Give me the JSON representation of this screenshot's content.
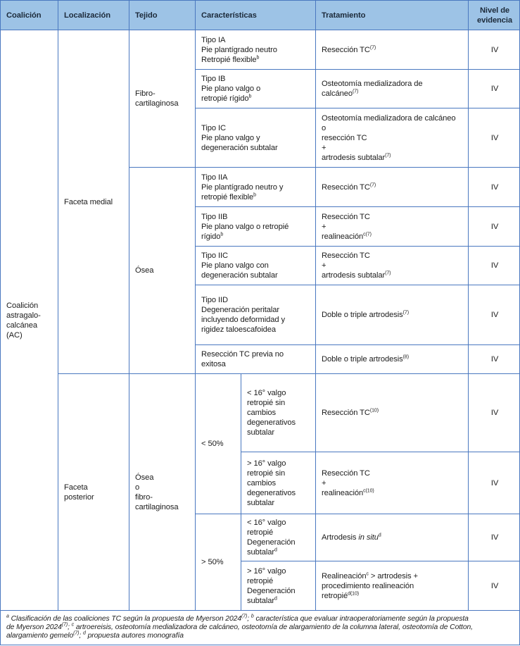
{
  "header": {
    "coalicion": [
      [
        "Coalición"
      ]
    ],
    "localizacion": [
      [
        "Localización"
      ]
    ],
    "tejido": [
      [
        "Tejido"
      ]
    ],
    "caracteristicas": [
      [
        "Características"
      ]
    ],
    "tratamiento": [
      [
        "Tratamiento"
      ]
    ],
    "nivel": [
      [
        "Nivel de"
      ],
      [
        "evidencia"
      ]
    ]
  },
  "coalicion": [
    [
      "Coalición"
    ],
    [
      "astragalo-"
    ],
    [
      "calcánea"
    ],
    [
      "(AC)"
    ]
  ],
  "localizacion": {
    "medial": [
      [
        "Faceta medial"
      ]
    ],
    "posterior": [
      [
        "Faceta"
      ],
      [
        "posterior"
      ]
    ]
  },
  "tejido": {
    "fibro": [
      [
        "Fibro-"
      ],
      [
        "cartilaginosa"
      ]
    ],
    "osea": [
      [
        "Ósea"
      ]
    ],
    "osea_fibro": [
      [
        "Ósea"
      ],
      [
        "o"
      ],
      [
        "fibro-"
      ],
      [
        "cartilaginosa"
      ]
    ]
  },
  "porcentaje": {
    "lt50": [
      [
        "< 50%"
      ]
    ],
    "gt50": [
      [
        "> 50%"
      ]
    ]
  },
  "rows": [
    {
      "car": [
        [
          "Tipo IA"
        ],
        [
          "Pie plantígrado neutro"
        ],
        [
          "Retropié flexible",
          {
            "s": "b"
          }
        ]
      ],
      "trat": [
        [
          "Resección TC",
          {
            "s": "(7)"
          }
        ]
      ],
      "niv": [
        [
          "IV"
        ]
      ]
    },
    {
      "car": [
        [
          "Tipo IB"
        ],
        [
          "Pie plano valgo o"
        ],
        [
          "retropié rígido",
          {
            "s": "b"
          }
        ]
      ],
      "trat": [
        [
          "Osteotomía medializadora de"
        ],
        [
          "calcáneo",
          {
            "s": "(7)"
          }
        ]
      ],
      "niv": [
        [
          "IV"
        ]
      ]
    },
    {
      "car": [
        [
          "Tipo IC"
        ],
        [
          "Pie plano valgo y"
        ],
        [
          "degeneración subtalar"
        ]
      ],
      "trat": [
        [
          "Osteotomía medializadora de calcáneo"
        ],
        [
          "o"
        ],
        [
          "resección TC"
        ],
        [
          "+"
        ],
        [
          "artrodesis subtalar",
          {
            "s": "(7)"
          }
        ]
      ],
      "niv": [
        [
          "IV"
        ]
      ]
    },
    {
      "car": [
        [
          "Tipo IIA"
        ],
        [
          "Pie plantígrado neutro y"
        ],
        [
          "retropié flexible",
          {
            "s": "b"
          }
        ]
      ],
      "trat": [
        [
          "Resección TC",
          {
            "s": "(7)"
          }
        ]
      ],
      "niv": [
        [
          "IV"
        ]
      ]
    },
    {
      "car": [
        [
          "Tipo IIB"
        ],
        [
          "Pie plano valgo o retropié"
        ],
        [
          "rígido",
          {
            "s": "b"
          }
        ]
      ],
      "trat": [
        [
          "Resección TC"
        ],
        [
          "+"
        ],
        [
          "realineación",
          {
            "s": "c(7)"
          }
        ]
      ],
      "niv": [
        [
          "IV"
        ]
      ]
    },
    {
      "car": [
        [
          "Tipo IIC"
        ],
        [
          "Pie plano valgo con"
        ],
        [
          "degeneración subtalar"
        ]
      ],
      "trat": [
        [
          "Resección TC"
        ],
        [
          "+"
        ],
        [
          "artrodesis subtalar",
          {
            "s": "(7)"
          }
        ]
      ],
      "niv": [
        [
          "IV"
        ]
      ]
    },
    {
      "car": [
        [
          "Tipo IID"
        ],
        [
          "Degeneración peritalar"
        ],
        [
          "incluyendo deformidad y"
        ],
        [
          "rigidez taloescafoidea"
        ]
      ],
      "trat": [
        [
          "Doble o triple artrodesis",
          {
            "s": "(7)"
          }
        ]
      ],
      "niv": [
        [
          "IV"
        ]
      ]
    },
    {
      "car": [
        [
          "Resección TC previa no"
        ],
        [
          "exitosa"
        ]
      ],
      "trat": [
        [
          "Doble o triple artrodesis",
          {
            "s": "(8)"
          }
        ]
      ],
      "niv": [
        [
          "IV"
        ]
      ]
    },
    {
      "car": [
        [
          "< 16° valgo"
        ],
        [
          "retropié sin"
        ],
        [
          "cambios"
        ],
        [
          "degenerativos"
        ],
        [
          "subtalar"
        ]
      ],
      "trat": [
        [
          "Resección TC",
          {
            "s": "(10)"
          }
        ]
      ],
      "niv": [
        [
          "IV"
        ]
      ]
    },
    {
      "car": [
        [
          "> 16° valgo"
        ],
        [
          "retropié sin"
        ],
        [
          "cambios"
        ],
        [
          "degenerativos"
        ],
        [
          "subtalar"
        ]
      ],
      "trat": [
        [
          "Resección TC"
        ],
        [
          "+"
        ],
        [
          "realineación",
          {
            "s": "c(10)"
          }
        ]
      ],
      "niv": [
        [
          "IV"
        ]
      ]
    },
    {
      "car": [
        [
          "< 16° valgo"
        ],
        [
          "retropié"
        ],
        [
          "Degeneración"
        ],
        [
          "subtalar",
          {
            "s": "d"
          }
        ]
      ],
      "trat": [
        [
          "Artrodesis ",
          {
            "i": "in situ"
          },
          {
            "s": "d"
          }
        ]
      ],
      "niv": [
        [
          "IV"
        ]
      ]
    },
    {
      "car": [
        [
          "> 16° valgo"
        ],
        [
          "retropié"
        ],
        [
          "Degeneración"
        ],
        [
          "subtalar",
          {
            "s": "d"
          }
        ]
      ],
      "trat": [
        [
          "Realineación",
          {
            "s": "c"
          },
          " > artrodesis +"
        ],
        [
          "procedimiento realineación"
        ],
        [
          "retropié",
          {
            "s": "d(10)"
          }
        ]
      ],
      "niv": [
        [
          "IV"
        ]
      ]
    }
  ],
  "footnote": [
    [
      {
        "s": "a"
      },
      " Clasificación de las coaliciones TC según la propuesta de Myerson 2024",
      {
        "s": "(7)"
      },
      "; ",
      {
        "s": "b"
      },
      " característica que evaluar intraoperatoriamente según la propuesta"
    ],
    [
      "de Myerson 2024",
      {
        "s": "(7)"
      },
      "; ",
      {
        "s": "c"
      },
      " artroereisis, osteotomía medializadora de calcáneo, osteotomía de alargamiento de la columna lateral, osteotomía de Cotton,"
    ],
    [
      "alargamiento gemelo",
      {
        "s": "(7)"
      },
      "; ",
      {
        "s": "d"
      },
      " propuesta autores monografía"
    ]
  ],
  "colors": {
    "header_bg": "#9dc3e6",
    "border": "#4a78c0"
  }
}
